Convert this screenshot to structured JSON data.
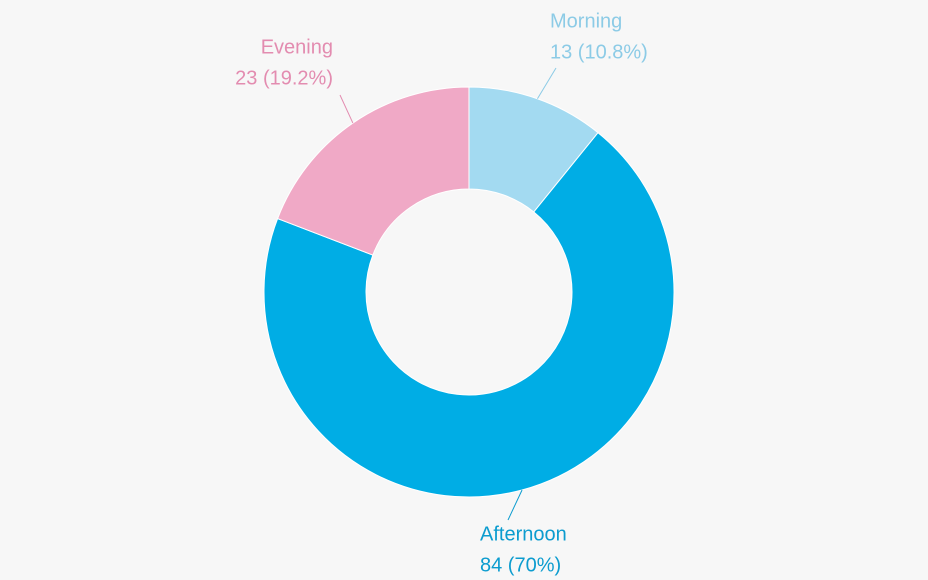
{
  "chart_data": {
    "type": "donut",
    "categories": [
      "Morning",
      "Afternoon",
      "Evening"
    ],
    "values": [
      13,
      84,
      23
    ],
    "value_labels": [
      "13 (10.8%)",
      "84 (70%)",
      "23 (19.2%)"
    ],
    "colors": [
      "#a3daf1",
      "#00ade5",
      "#f0a9c6"
    ],
    "label_colors": [
      "#8ccbe6",
      "#0c9ccf",
      "#e38cb0"
    ]
  }
}
